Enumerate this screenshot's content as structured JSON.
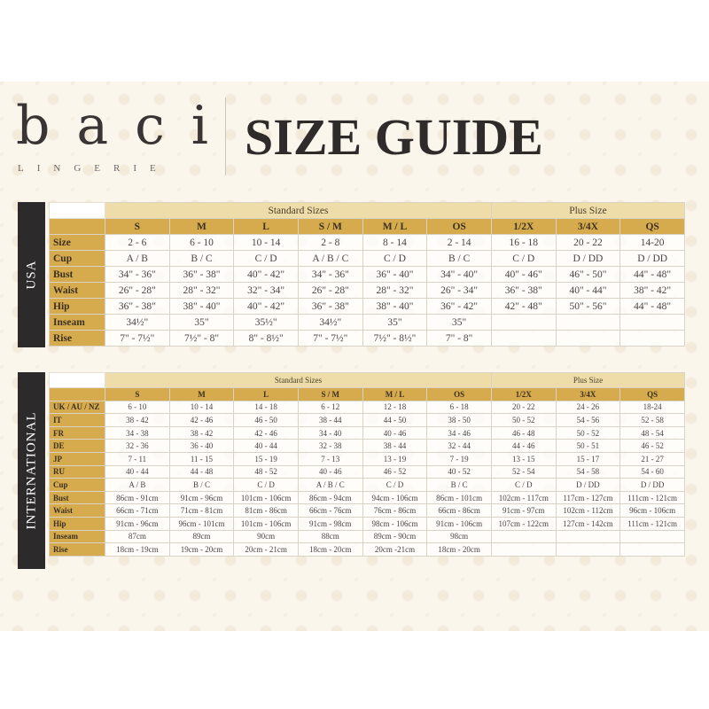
{
  "brand": {
    "logo_word": "baci",
    "logo_sub": "LINGERIE"
  },
  "title": "SIZE GUIDE",
  "colors": {
    "header_gold": "#d6ab4e",
    "group_header": "#efdda9",
    "side_label": "#2c2a2a",
    "background": "#fbf6ec"
  },
  "usa": {
    "label": "USA",
    "group_standard": "Standard Sizes",
    "group_plus": "Plus Size",
    "columns": [
      "S",
      "M",
      "L",
      "S / M",
      "M / L",
      "OS",
      "1/2X",
      "3/4X",
      "QS"
    ],
    "rows": [
      {
        "label": "Size",
        "values": [
          "2 - 6",
          "6 - 10",
          "10 - 14",
          "2 - 8",
          "8 - 14",
          "2 - 14",
          "16 - 18",
          "20 - 22",
          "14-20"
        ]
      },
      {
        "label": "Cup",
        "values": [
          "A / B",
          "B / C",
          "C / D",
          "A / B / C",
          "C / D",
          "B / C",
          "C / D",
          "D / DD",
          "D / DD"
        ]
      },
      {
        "label": "Bust",
        "values": [
          "34\" - 36\"",
          "36\" - 38\"",
          "40\" - 42\"",
          "34\" - 36\"",
          "36\" - 40\"",
          "34\" - 40\"",
          "40\" - 46\"",
          "46\" - 50\"",
          "44\" - 48\""
        ]
      },
      {
        "label": "Waist",
        "values": [
          "26\" - 28\"",
          "28\" - 32\"",
          "32\" - 34\"",
          "26\" - 28\"",
          "28\" - 32\"",
          "26\" - 34\"",
          "36\" - 38\"",
          "40\" - 44\"",
          "38\" - 42\""
        ]
      },
      {
        "label": "Hip",
        "values": [
          "36\" - 38\"",
          "38\" - 40\"",
          "40\" - 42\"",
          "36\" - 38\"",
          "38\" - 40\"",
          "36\" - 42\"",
          "42\" - 48\"",
          "50\" - 56\"",
          "44\" - 48\""
        ]
      },
      {
        "label": "Inseam",
        "values": [
          "34½\"",
          "35\"",
          "35½\"",
          "34½\"",
          "35\"",
          "35\"",
          "",
          "",
          ""
        ]
      },
      {
        "label": "Rise",
        "values": [
          "7\" - 7½\"",
          "7½\" - 8\"",
          "8\" - 8½\"",
          "7\" - 7½\"",
          "7½\" - 8½\"",
          "7\" - 8\"",
          "",
          "",
          ""
        ]
      }
    ]
  },
  "international": {
    "label": "INTERNATIONAL",
    "group_standard": "Standard Sizes",
    "group_plus": "Plus Size",
    "columns": [
      "S",
      "M",
      "L",
      "S / M",
      "M / L",
      "OS",
      "1/2X",
      "3/4X",
      "QS"
    ],
    "rows": [
      {
        "label": "UK / AU / NZ",
        "values": [
          "6 - 10",
          "10 - 14",
          "14 - 18",
          "6 - 12",
          "12 - 18",
          "6 - 18",
          "20 - 22",
          "24 - 26",
          "18-24"
        ]
      },
      {
        "label": "IT",
        "values": [
          "38 - 42",
          "42 - 46",
          "46 - 50",
          "38 - 44",
          "44 - 50",
          "38 - 50",
          "50 - 52",
          "54 - 56",
          "52 - 58"
        ]
      },
      {
        "label": "FR",
        "values": [
          "34 - 38",
          "38 - 42",
          "42 - 46",
          "34 - 40",
          "40 - 46",
          "34 - 46",
          "46 - 48",
          "50 - 52",
          "48 - 54"
        ]
      },
      {
        "label": "DE",
        "values": [
          "32 - 36",
          "36 - 40",
          "40 - 44",
          "32 - 38",
          "38 - 44",
          "32 - 44",
          "44 - 46",
          "50 - 51",
          "46 - 52"
        ]
      },
      {
        "label": "JP",
        "values": [
          "7 - 11",
          "11 - 15",
          "15 - 19",
          "7 - 13",
          "13 - 19",
          "7 - 19",
          "13 - 15",
          "15 - 17",
          "21 - 27"
        ]
      },
      {
        "label": "RU",
        "values": [
          "40 - 44",
          "44 - 48",
          "48 - 52",
          "40 - 46",
          "46 - 52",
          "40 - 52",
          "52 - 54",
          "54 - 58",
          "54 - 60"
        ]
      },
      {
        "label": "Cup",
        "values": [
          "A / B",
          "B / C",
          "C / D",
          "A / B / C",
          "C / D",
          "B / C",
          "C / D",
          "D / DD",
          "D / DD"
        ]
      },
      {
        "label": "Bust",
        "values": [
          "86cm - 91cm",
          "91cm - 96cm",
          "101cm - 106cm",
          "86cm - 94cm",
          "94cm - 106cm",
          "86cm - 101cm",
          "102cm - 117cm",
          "117cm - 127cm",
          "111cm - 121cm"
        ]
      },
      {
        "label": "Waist",
        "values": [
          "66cm - 71cm",
          "71cm - 81cm",
          "81cm - 86cm",
          "66cm - 76cm",
          "76cm - 86cm",
          "66cm - 86cm",
          "91cm - 97cm",
          "102cm - 112cm",
          "96cm - 106cm"
        ]
      },
      {
        "label": "Hip",
        "values": [
          "91cm - 96cm",
          "96cm - 101cm",
          "101cm - 106cm",
          "91cm - 98cm",
          "98cm - 106cm",
          "91cm - 106cm",
          "107cm - 122cm",
          "127cm - 142cm",
          "111cm - 121cm"
        ]
      },
      {
        "label": "Inseam",
        "values": [
          "87cm",
          "89cm",
          "90cm",
          "88cm",
          "89cm - 90cm",
          "98cm",
          "",
          "",
          ""
        ]
      },
      {
        "label": "Rise",
        "values": [
          "18cm - 19cm",
          "19cm - 20cm",
          "20cm - 21cm",
          "18cm - 20cm",
          "20cm -21cm",
          "18cm - 20cm",
          "",
          "",
          ""
        ]
      }
    ]
  }
}
